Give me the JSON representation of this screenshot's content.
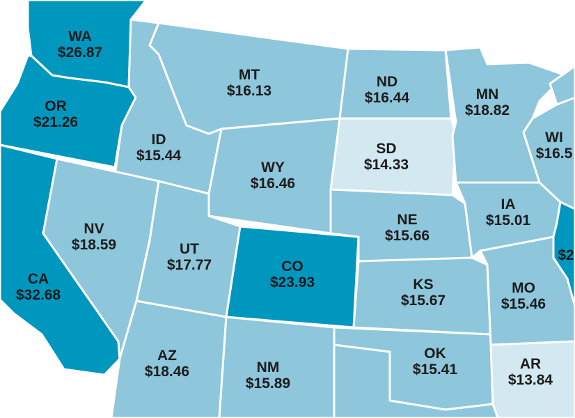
{
  "map": {
    "palette": {
      "dark": "#0097bf",
      "medium": "#8ec6dc",
      "light": "#d3e8f1",
      "border": "#ffffff",
      "text": "#1b1b1b"
    },
    "states": [
      {
        "id": "wa",
        "abbr": "WA",
        "wage": "$26.87",
        "tier": "dark"
      },
      {
        "id": "or",
        "abbr": "OR",
        "wage": "$21.26",
        "tier": "dark"
      },
      {
        "id": "ca",
        "abbr": "CA",
        "wage": "$32.68",
        "tier": "dark"
      },
      {
        "id": "id",
        "abbr": "ID",
        "wage": "$15.44",
        "tier": "medium"
      },
      {
        "id": "nv",
        "abbr": "NV",
        "wage": "$18.59",
        "tier": "medium"
      },
      {
        "id": "mt",
        "abbr": "MT",
        "wage": "$16.13",
        "tier": "medium"
      },
      {
        "id": "wy",
        "abbr": "WY",
        "wage": "$16.46",
        "tier": "medium"
      },
      {
        "id": "ut",
        "abbr": "UT",
        "wage": "$17.77",
        "tier": "medium"
      },
      {
        "id": "co",
        "abbr": "CO",
        "wage": "$23.93",
        "tier": "dark"
      },
      {
        "id": "az",
        "abbr": "AZ",
        "wage": "$18.46",
        "tier": "medium"
      },
      {
        "id": "nm",
        "abbr": "NM",
        "wage": "$15.89",
        "tier": "medium"
      },
      {
        "id": "nd",
        "abbr": "ND",
        "wage": "$16.44",
        "tier": "medium"
      },
      {
        "id": "sd",
        "abbr": "SD",
        "wage": "$14.33",
        "tier": "light"
      },
      {
        "id": "ne",
        "abbr": "NE",
        "wage": "$15.66",
        "tier": "medium"
      },
      {
        "id": "ks",
        "abbr": "KS",
        "wage": "$15.67",
        "tier": "medium"
      },
      {
        "id": "ok",
        "abbr": "OK",
        "wage": "$15.41",
        "tier": "medium"
      },
      {
        "id": "mn",
        "abbr": "MN",
        "wage": "$18.82",
        "tier": "medium"
      },
      {
        "id": "ia",
        "abbr": "IA",
        "wage": "$15.01",
        "tier": "medium"
      },
      {
        "id": "mo",
        "abbr": "MO",
        "wage": "$15.46",
        "tier": "medium"
      },
      {
        "id": "ar",
        "abbr": "AR",
        "wage": "$13.84",
        "tier": "light"
      },
      {
        "id": "wi",
        "abbr": "WI",
        "wage": "$16.5",
        "tier": "medium"
      },
      {
        "id": "il",
        "abbr": "",
        "wage": "$2",
        "tier": "dark"
      },
      {
        "id": "tx",
        "abbr": "",
        "wage": "",
        "tier": "medium"
      },
      {
        "id": "mi",
        "abbr": "",
        "wage": "",
        "tier": "medium"
      }
    ]
  }
}
